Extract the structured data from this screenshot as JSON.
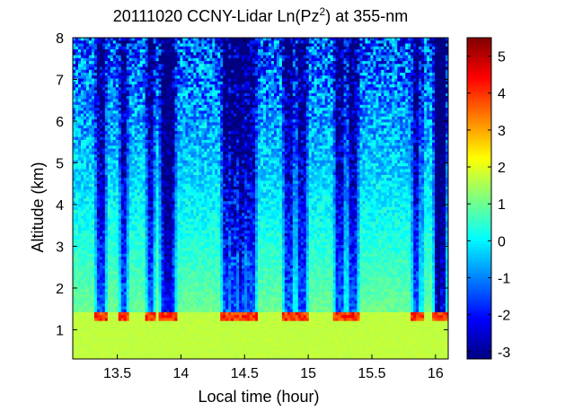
{
  "chart_data": {
    "type": "heatmap",
    "title_main": "20111020 CCNY-Lidar Ln(Pz",
    "title_sup": "2",
    "title_tail": ") at 355-nm",
    "xlabel": "Local time (hour)",
    "ylabel": "Altitude (km)",
    "xlim": [
      13.15,
      16.1
    ],
    "ylim": [
      0.3,
      8.0
    ],
    "x_ticks": [
      13.5,
      14,
      14.5,
      15,
      15.5,
      16
    ],
    "x_tick_labels": [
      "13.5",
      "14",
      "14.5",
      "15",
      "15.5",
      "16"
    ],
    "y_ticks": [
      1,
      2,
      3,
      4,
      5,
      6,
      7,
      8
    ],
    "y_tick_labels": [
      "1",
      "2",
      "3",
      "4",
      "5",
      "6",
      "7",
      "8"
    ],
    "colorbar": {
      "colormap": "jet",
      "clim": [
        -3.2,
        5.5
      ],
      "ticks": [
        -3,
        -2,
        -1,
        0,
        1,
        2,
        3,
        4,
        5
      ],
      "tick_labels": [
        "-3",
        "-2",
        "-1",
        "0",
        "1",
        "2",
        "3",
        "4",
        "5"
      ]
    },
    "field": {
      "boundary_layer_top_km": 1.4,
      "boundary_layer_value": 1.7,
      "value_near_1_5km": 1.0,
      "value_at_8km": -1.5,
      "aerosol_layer_peak_value": 4.2,
      "cloud_columns_hours": [
        13.37,
        13.55,
        13.76,
        13.87,
        13.92,
        14.35,
        14.42,
        14.48,
        14.55,
        14.85,
        14.95,
        15.25,
        15.35,
        15.85,
        16.02,
        16.05
      ]
    }
  }
}
